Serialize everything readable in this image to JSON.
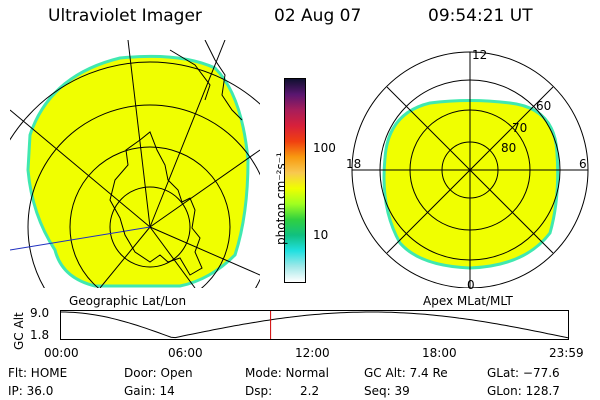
{
  "header": {
    "instrument": "Ultraviolet Imager",
    "date": "02 Aug 07",
    "time": "09:54:21 UT"
  },
  "colors": {
    "fill": "#f0ff00",
    "rim": "#40e8b0",
    "line": "#000000",
    "blue_line": "#2030c0",
    "marker": "#d00000"
  },
  "colorbar": {
    "unit": "photon cm⁻²s⁻¹",
    "labels": [
      "100",
      "10"
    ],
    "stops": [
      "#101030",
      "#5a1670",
      "#a81e5a",
      "#d8203a",
      "#f04010",
      "#f89a10",
      "#f8c850",
      "#f0ff00",
      "#a0ff20",
      "#30d040",
      "#10c080",
      "#20e0e0",
      "#a0e8e8",
      "#ffffff"
    ]
  },
  "geo_panel": {
    "label": "Geographic Lat/Lon"
  },
  "apex_panel": {
    "label": "Apex MLat/MLT",
    "lat_labels": [
      "60",
      "70",
      "80"
    ],
    "mlt_labels": {
      "top": "12",
      "left": "18",
      "right": "6",
      "bottom": "0"
    }
  },
  "altitude_plot": {
    "ylabel": "GC Alt",
    "y_ticks": [
      "9.0",
      "1.8"
    ],
    "x_ticks": [
      "00:00",
      "06:00",
      "12:00",
      "18:00",
      "23:59"
    ],
    "current_marker_hours": 9.9
  },
  "info": {
    "flt": "Flt: HOME",
    "ip": "IP: 36.0",
    "door": "Door: Open",
    "gain": "Gain: 14",
    "mode": "Mode: Normal",
    "dsp_label": "Dsp:",
    "dsp_value": "2.2",
    "gc_alt": "GC Alt: 7.4 Re",
    "seq": "Seq: 39",
    "glat": "GLat: −77.6",
    "glon": "GLon: 128.7"
  }
}
